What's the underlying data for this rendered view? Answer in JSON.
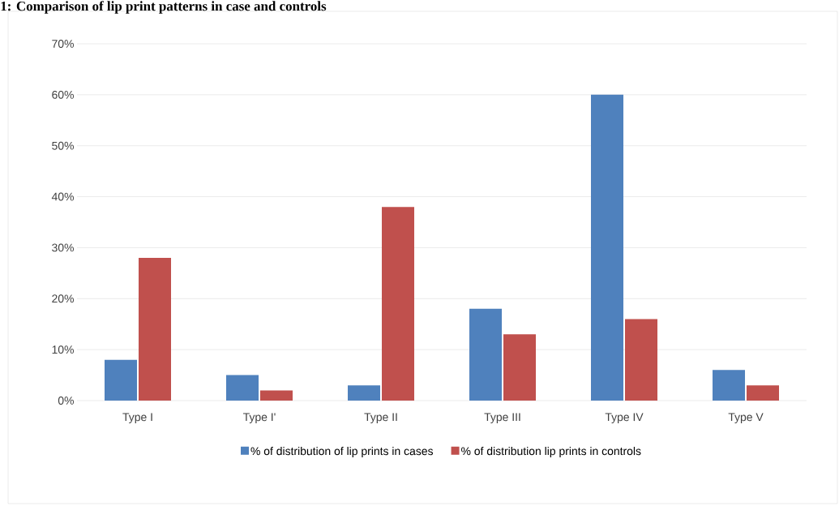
{
  "chart_data": {
    "type": "bar",
    "title": "1: Comparison of lip print patterns in case and controls",
    "categories": [
      "Type I",
      "Type I'",
      "Type II",
      "Type III",
      "Type IV",
      "Type V"
    ],
    "series": [
      {
        "name": "% of distribution of lip prints in cases",
        "color": "#4f81bd",
        "values": [
          8,
          5,
          3,
          18,
          60,
          6
        ]
      },
      {
        "name": "% of distribution lip prints in controls",
        "color": "#c0504d",
        "values": [
          28,
          2,
          38,
          13,
          16,
          3
        ]
      }
    ],
    "ylim": [
      0,
      70
    ],
    "yticks": [
      {
        "value": 0,
        "label": "0%"
      },
      {
        "value": 10,
        "label": "10%"
      },
      {
        "value": 20,
        "label": "20%"
      },
      {
        "value": 30,
        "label": "30%"
      },
      {
        "value": 40,
        "label": "40%"
      },
      {
        "value": 50,
        "label": "50%"
      },
      {
        "value": 60,
        "label": "60%"
      },
      {
        "value": 70,
        "label": "70%"
      }
    ],
    "grid": "y",
    "legend": "bottom"
  }
}
